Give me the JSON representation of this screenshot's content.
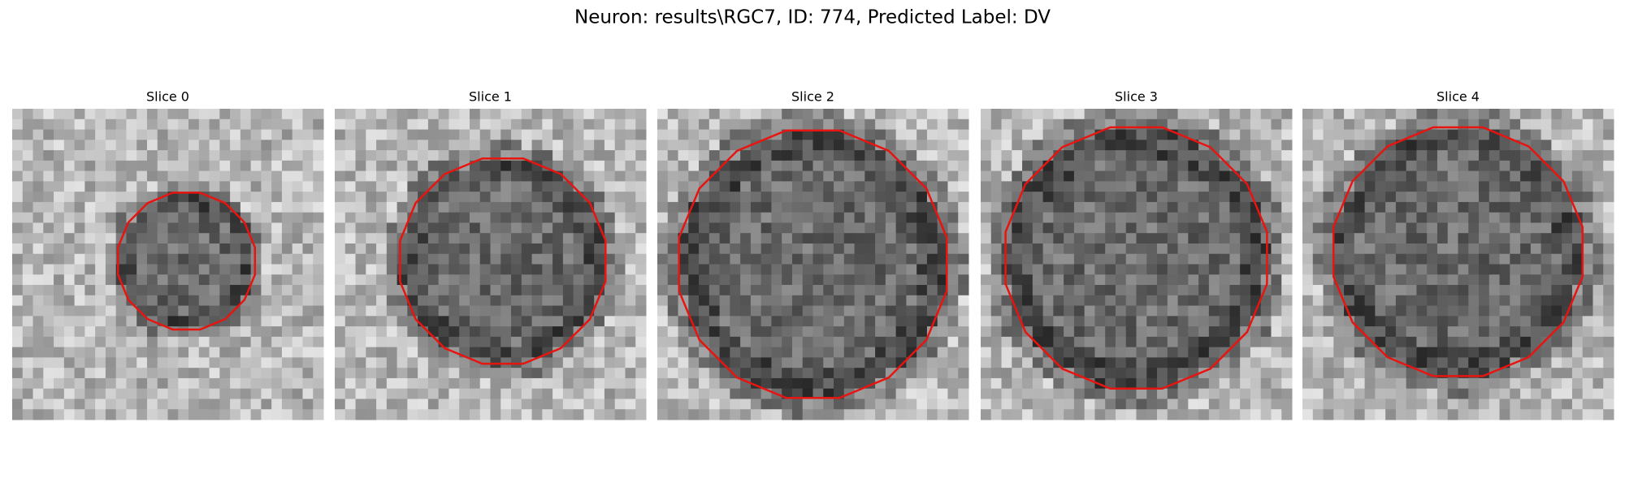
{
  "figure": {
    "title": "Neuron: results\\RGC7, ID: 774, Predicted Label: DV",
    "panels": [
      {
        "title": "Slice 0"
      },
      {
        "title": "Slice 1"
      },
      {
        "title": "Slice 2"
      },
      {
        "title": "Slice 3"
      },
      {
        "title": "Slice 4"
      }
    ]
  }
}
